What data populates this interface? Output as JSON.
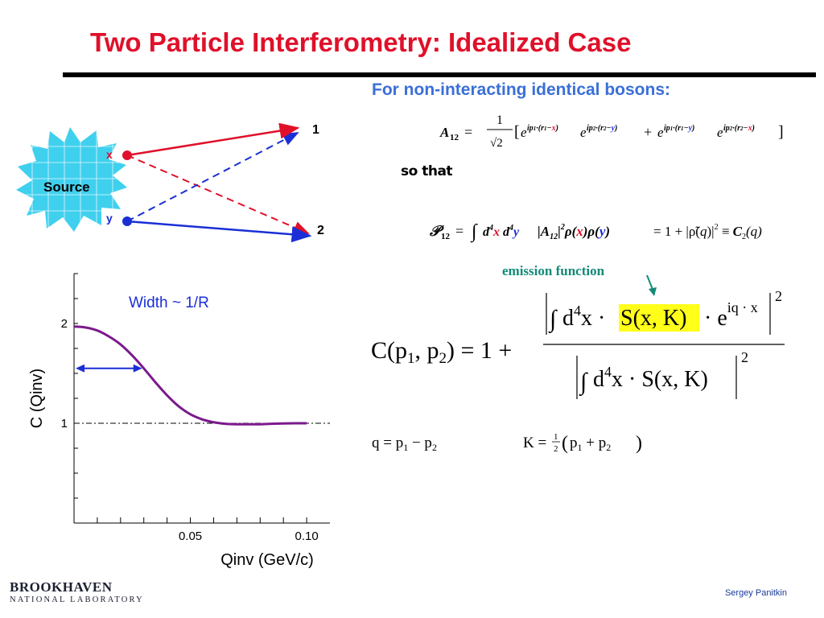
{
  "title": "Two Particle Interferometry: Idealized Case",
  "subtitle": "For non-interacting identical bosons:",
  "diagram": {
    "source_label": "Source",
    "point_x": "x",
    "point_y": "y",
    "detector_1": "1",
    "detector_2": "2"
  },
  "formulas": {
    "so_that": "so that",
    "emission_function": "emission function",
    "correlation_lhs": "C(p",
    "q_def": "q = p1 − p2",
    "k_def": "K = ½(p1 + p2)"
  },
  "chart_data": {
    "type": "line",
    "xlabel": "Qinv (GeV/c)",
    "ylabel": "C (Qinv)",
    "xlim": [
      0.0,
      0.11
    ],
    "ylim": [
      0.0,
      2.5
    ],
    "x_ticks": [
      "0.05",
      "0.10"
    ],
    "y_ticks": [
      "1",
      "2"
    ],
    "annotation": "Width ~ 1/R",
    "baseline": 1,
    "series": [
      {
        "color": "#7b1a8c",
        "x": [
          0.0,
          0.005,
          0.01,
          0.015,
          0.02,
          0.025,
          0.03,
          0.035,
          0.04,
          0.045,
          0.05,
          0.055,
          0.06,
          0.065,
          0.07,
          0.075,
          0.08,
          0.085,
          0.09,
          0.095,
          0.1
        ],
        "y": [
          1.97,
          1.96,
          1.93,
          1.87,
          1.79,
          1.68,
          1.55,
          1.41,
          1.28,
          1.17,
          1.09,
          1.04,
          1.01,
          0.995,
          0.99,
          0.99,
          0.99,
          0.995,
          0.998,
          1.0,
          1.0
        ]
      }
    ]
  },
  "footer": {
    "author": "Sergey  Panitkin"
  },
  "logo": {
    "name": "BROOKHAVEN",
    "sub": "NATIONAL LABORATORY"
  },
  "colors": {
    "title": "#e0102a",
    "subtitle": "#3a6fd8",
    "source_fill": "#3fd0ee",
    "red": "#e0102a",
    "blue": "#1a2fd6",
    "curve": "#7b1a8c"
  }
}
